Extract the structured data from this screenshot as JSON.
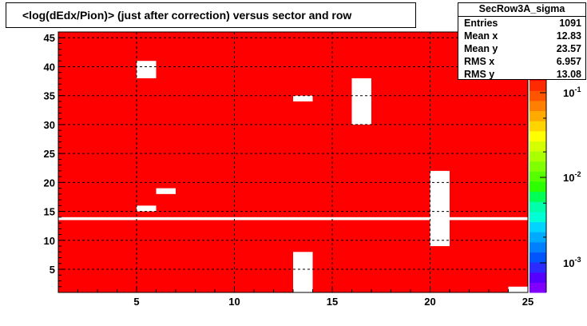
{
  "title": "<log(dEdx/Pion)> (just after correction) versus sector and row",
  "stats": {
    "name": "SecRow3A_sigma",
    "rows": [
      {
        "label": "Entries",
        "value": "1091"
      },
      {
        "label": "Mean x",
        "value": "12.83"
      },
      {
        "label": "Mean y",
        "value": "23.57"
      },
      {
        "label": "RMS x",
        "value": "6.957"
      },
      {
        "label": "RMS y",
        "value": "13.08"
      }
    ]
  },
  "colors": {
    "fill": "#ff0000",
    "empty": "#ffffff",
    "frame": "#000000",
    "palette": [
      "#7f00ff",
      "#5500ff",
      "#2b2bff",
      "#0055ff",
      "#0080ff",
      "#00aaff",
      "#00d4ff",
      "#00ffd4",
      "#00ffaa",
      "#00ff55",
      "#2bff00",
      "#55ff00",
      "#80ff00",
      "#aaff00",
      "#d4ff00",
      "#ffff00",
      "#ffd400",
      "#ffaa00",
      "#ff8000",
      "#ff5500",
      "#ff2b00",
      "#ff0000"
    ]
  },
  "chart_data": {
    "type": "heatmap",
    "title": "<log(dEdx/Pion)> (just after correction) versus sector and row",
    "xlabel": "",
    "ylabel": "",
    "xlim": [
      1,
      25
    ],
    "ylim": [
      1,
      46
    ],
    "xticks": [
      5,
      10,
      15,
      20,
      25
    ],
    "yticks": [
      5,
      10,
      15,
      20,
      25,
      30,
      35,
      40,
      45
    ],
    "grid": true,
    "colorbar": {
      "scale": "log",
      "labels": [
        "10^-1",
        "10^-2",
        "10^-3"
      ]
    },
    "cell_value": "filled",
    "empty_cells": [
      {
        "x": [
          5,
          6
        ],
        "y": [
          38,
          41
        ]
      },
      {
        "x": [
          6,
          7
        ],
        "y": [
          18,
          19
        ]
      },
      {
        "x": [
          5,
          6
        ],
        "y": [
          15,
          16
        ]
      },
      {
        "x": [
          13,
          14
        ],
        "y": [
          34,
          35
        ]
      },
      {
        "x": [
          16,
          17
        ],
        "y": [
          30,
          38
        ]
      },
      {
        "x": [
          20,
          21
        ],
        "y": [
          9,
          22
        ]
      },
      {
        "x": [
          13,
          14
        ],
        "y": [
          1,
          8
        ]
      },
      {
        "x": [
          24,
          25
        ],
        "y": [
          1,
          2
        ]
      },
      {
        "x": [
          1,
          25
        ],
        "y": [
          13.5,
          14
        ]
      }
    ]
  }
}
